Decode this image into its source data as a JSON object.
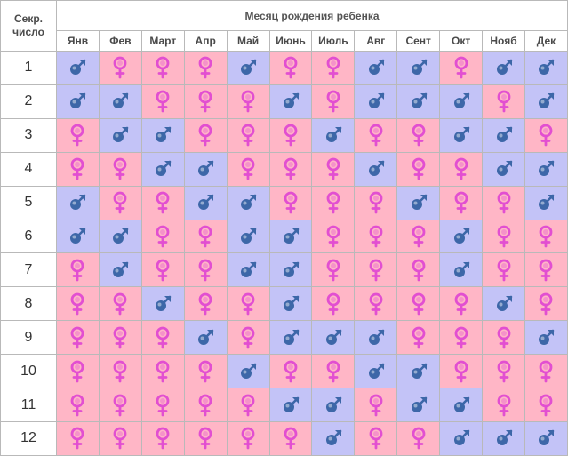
{
  "header": {
    "age_label_line1": "Секр.",
    "age_label_line2": "число",
    "title": "Месяц рождения ребенка"
  },
  "months": [
    "Янв",
    "Фев",
    "Март",
    "Апр",
    "Май",
    "Июнь",
    "Июль",
    "Авг",
    "Сент",
    "Окт",
    "Нояб",
    "Дек"
  ],
  "legend_codes": {
    "G": "girl (female symbol, pink cell)",
    "B": "boy (male symbol, blue cell)"
  },
  "colors": {
    "girl_cell": "#ffb6c6",
    "boy_cell": "#c3c3f7",
    "girl_symbol": "#e24fd1",
    "boy_symbol": "#3d67a8",
    "grid": "#b9b9b9"
  },
  "icons": {
    "girl": "female-symbol-icon",
    "boy": "male-symbol-icon"
  },
  "rows": [
    {
      "label": "1",
      "cells": [
        "B",
        "G",
        "G",
        "G",
        "B",
        "G",
        "G",
        "B",
        "B",
        "G",
        "B",
        "B"
      ]
    },
    {
      "label": "2",
      "cells": [
        "B",
        "B",
        "G",
        "G",
        "G",
        "B",
        "G",
        "B",
        "B",
        "B",
        "G",
        "B"
      ]
    },
    {
      "label": "3",
      "cells": [
        "G",
        "B",
        "B",
        "G",
        "G",
        "G",
        "B",
        "G",
        "G",
        "B",
        "B",
        "G"
      ]
    },
    {
      "label": "4",
      "cells": [
        "G",
        "G",
        "B",
        "B",
        "G",
        "G",
        "G",
        "B",
        "G",
        "G",
        "B",
        "B"
      ]
    },
    {
      "label": "5",
      "cells": [
        "B",
        "G",
        "G",
        "B",
        "B",
        "G",
        "G",
        "G",
        "B",
        "G",
        "G",
        "B"
      ]
    },
    {
      "label": "6",
      "cells": [
        "B",
        "B",
        "G",
        "G",
        "B",
        "B",
        "G",
        "G",
        "G",
        "B",
        "G",
        "G"
      ]
    },
    {
      "label": "7",
      "cells": [
        "G",
        "B",
        "G",
        "G",
        "B",
        "B",
        "G",
        "G",
        "G",
        "B",
        "G",
        "G"
      ]
    },
    {
      "label": "8",
      "cells": [
        "G",
        "G",
        "B",
        "G",
        "G",
        "B",
        "G",
        "G",
        "G",
        "G",
        "B",
        "G"
      ]
    },
    {
      "label": "9",
      "cells": [
        "G",
        "G",
        "G",
        "B",
        "G",
        "B",
        "B",
        "B",
        "G",
        "G",
        "G",
        "B"
      ]
    },
    {
      "label": "10",
      "cells": [
        "G",
        "G",
        "G",
        "G",
        "B",
        "G",
        "G",
        "B",
        "B",
        "G",
        "G",
        "G"
      ]
    },
    {
      "label": "11",
      "cells": [
        "G",
        "G",
        "G",
        "G",
        "G",
        "B",
        "B",
        "G",
        "B",
        "B",
        "G",
        "G"
      ]
    },
    {
      "label": "12",
      "cells": [
        "G",
        "G",
        "G",
        "G",
        "G",
        "G",
        "B",
        "G",
        "G",
        "B",
        "B",
        "B"
      ]
    }
  ]
}
